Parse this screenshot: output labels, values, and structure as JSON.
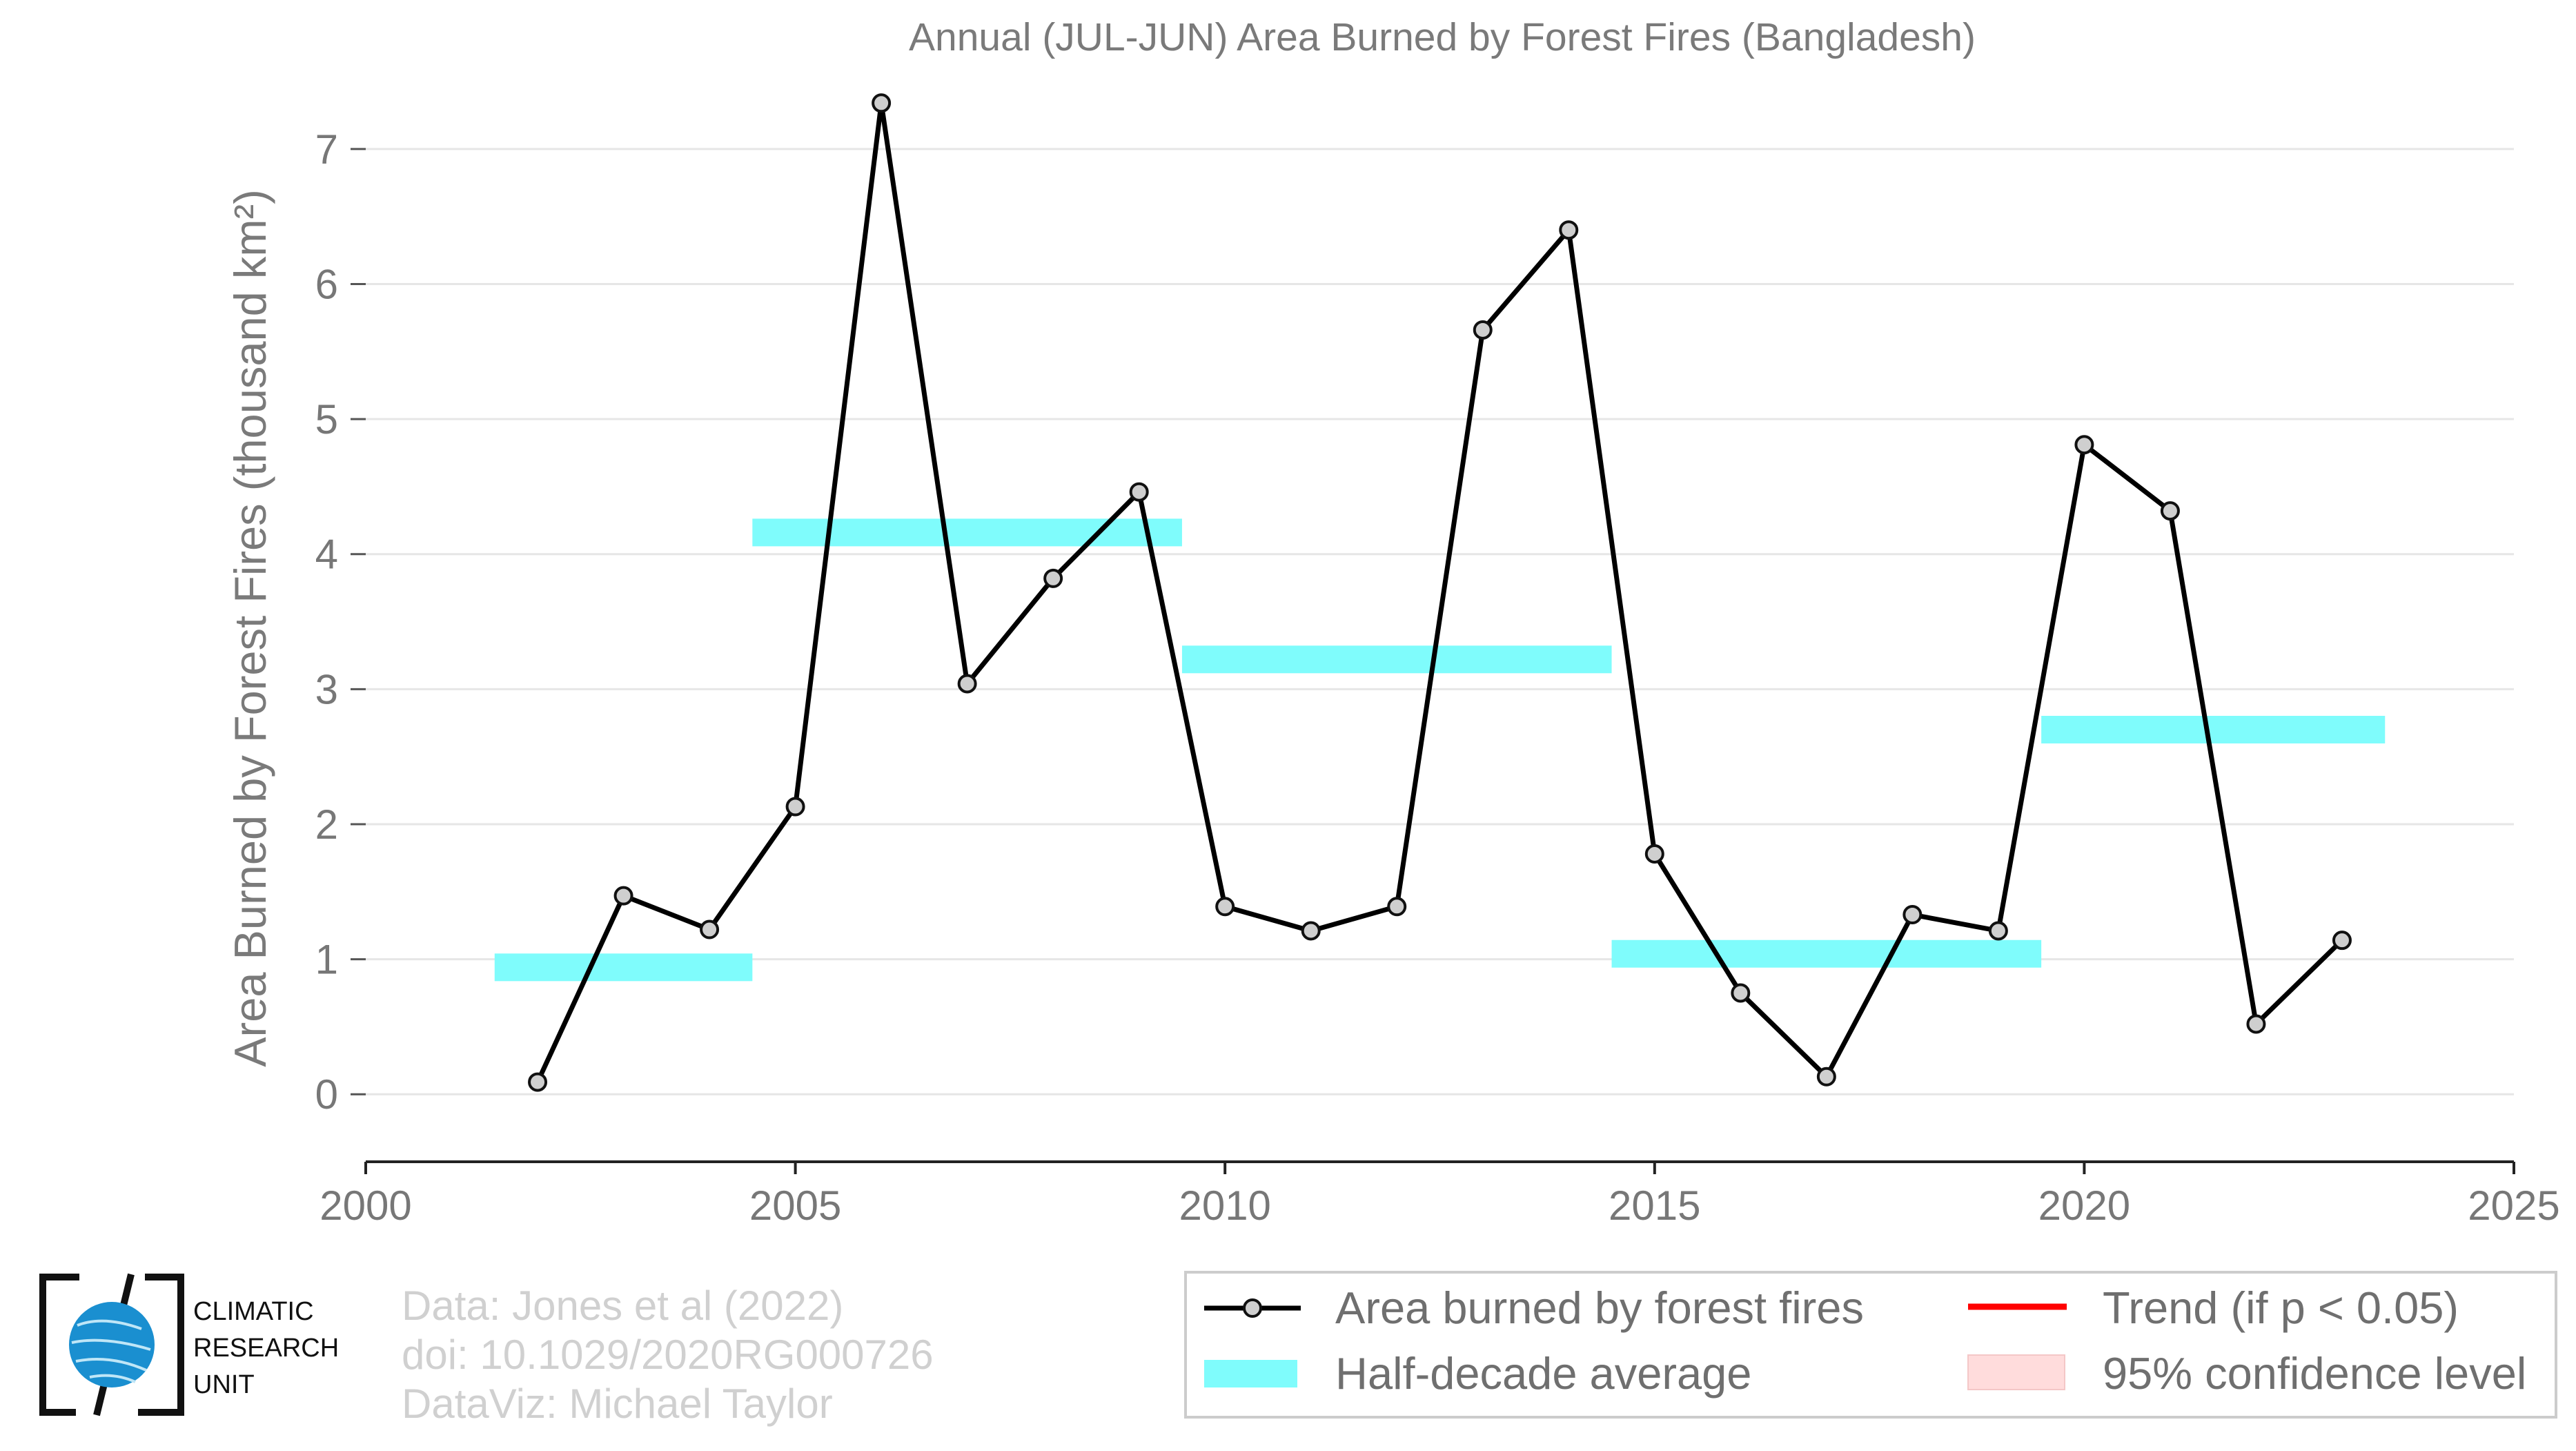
{
  "chart_data": {
    "type": "line",
    "title": "Annual (JUL-JUN) Area Burned by Forest Fires (Bangladesh)",
    "ylabel": "Area Burned by Forest Fires (thousand km²)",
    "xlabel": "",
    "xlim": [
      2000,
      2025
    ],
    "ylim": [
      -0.5,
      7.5
    ],
    "xticks": [
      2000,
      2005,
      2010,
      2015,
      2020,
      2025
    ],
    "yticks": [
      0,
      1,
      2,
      3,
      4,
      5,
      6,
      7
    ],
    "grid": "horizontal",
    "legend_position": "bottom-right",
    "series": [
      {
        "name": "Area burned by forest fires",
        "color": "#000000",
        "x": [
          2002,
          2003,
          2004,
          2005,
          2006,
          2007,
          2008,
          2009,
          2010,
          2011,
          2012,
          2013,
          2014,
          2015,
          2016,
          2017,
          2018,
          2019,
          2020,
          2021,
          2022,
          2023
        ],
        "y": [
          0.09,
          1.47,
          1.22,
          2.13,
          7.34,
          3.04,
          3.82,
          4.46,
          1.39,
          1.21,
          1.39,
          5.66,
          6.4,
          1.78,
          0.75,
          0.13,
          1.33,
          1.21,
          4.81,
          4.32,
          0.52,
          1.14
        ]
      }
    ],
    "half_decade_average": {
      "name": "Half-decade average",
      "color": "#7ffcfc",
      "segments": [
        {
          "x0": 2001.5,
          "x1": 2004.5,
          "y": 0.94
        },
        {
          "x0": 2004.5,
          "x1": 2009.5,
          "y": 4.16
        },
        {
          "x0": 2009.5,
          "x1": 2014.5,
          "y": 3.22
        },
        {
          "x0": 2014.5,
          "x1": 2019.5,
          "y": 1.04
        },
        {
          "x0": 2019.5,
          "x1": 2023.5,
          "y": 2.7
        }
      ]
    },
    "legend": {
      "entries": [
        {
          "label": "Area burned by forest fires",
          "kind": "line-marker",
          "color": "#000000"
        },
        {
          "label": "Half-decade average",
          "kind": "band",
          "color": "#7ffcfc"
        },
        {
          "label": "Trend (if p < 0.05)",
          "kind": "line",
          "color": "#ff0000"
        },
        {
          "label": "95% confidence level",
          "kind": "patch",
          "color": "#ffdcdc"
        }
      ]
    }
  },
  "credits": {
    "line1": "Data: Jones et al (2022)",
    "line2": "doi: 10.1029/2020RG000726",
    "line3": "DataViz: Michael Taylor"
  },
  "logo": {
    "line1": "CLIMATIC",
    "line2": "RESEARCH",
    "line3": "UNIT",
    "icon": "globe-icon"
  }
}
